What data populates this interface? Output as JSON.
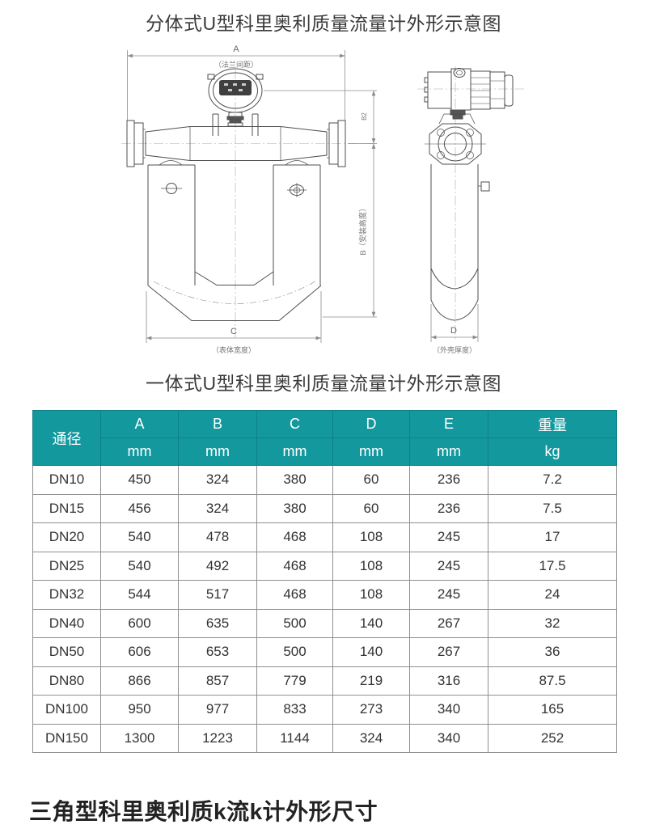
{
  "page": {
    "title_top": "分体式U型科里奥利质量流量计外形示意图",
    "title_middle": "一体式U型科里奥利质量流量计外形示意图",
    "bottom_heading": "三角型科里奥利质k流k计外形尺寸"
  },
  "drawing": {
    "front_view": {
      "dim_a_label": "A",
      "dim_a_note": "（法兰间距）",
      "dim_c_label": "C",
      "dim_c_note": "（表体宽度）",
      "dim_b_label": "B（安装高度）",
      "dim_b2_label": "B2"
    },
    "side_view": {
      "dim_d_label": "D",
      "dim_d_note": "（外壳厚度）"
    }
  },
  "table": {
    "columns": [
      {
        "label": "通径",
        "unit": ""
      },
      {
        "label": "A",
        "unit": "mm"
      },
      {
        "label": "B",
        "unit": "mm"
      },
      {
        "label": "C",
        "unit": "mm"
      },
      {
        "label": "D",
        "unit": "mm"
      },
      {
        "label": "E",
        "unit": "mm"
      },
      {
        "label": "重量",
        "unit": "kg"
      }
    ],
    "rows": [
      [
        "DN10",
        "450",
        "324",
        "380",
        "60",
        "236",
        "7.2"
      ],
      [
        "DN15",
        "456",
        "324",
        "380",
        "60",
        "236",
        "7.5"
      ],
      [
        "DN20",
        "540",
        "478",
        "468",
        "108",
        "245",
        "17"
      ],
      [
        "DN25",
        "540",
        "492",
        "468",
        "108",
        "245",
        "17.5"
      ],
      [
        "DN32",
        "544",
        "517",
        "468",
        "108",
        "245",
        "24"
      ],
      [
        "DN40",
        "600",
        "635",
        "500",
        "140",
        "267",
        "32"
      ],
      [
        "DN50",
        "606",
        "653",
        "500",
        "140",
        "267",
        "36"
      ],
      [
        "DN80",
        "866",
        "857",
        "779",
        "219",
        "316",
        "87.5"
      ],
      [
        "DN100",
        "950",
        "977",
        "833",
        "273",
        "340",
        "165"
      ],
      [
        "DN150",
        "1300",
        "1223",
        "1144",
        "324",
        "340",
        "252"
      ]
    ]
  },
  "colors": {
    "header_teal": "#13989E",
    "header_text": "#ffffff",
    "object_line": "#4f4f4f",
    "dimension_line": "#8c8c8c"
  }
}
